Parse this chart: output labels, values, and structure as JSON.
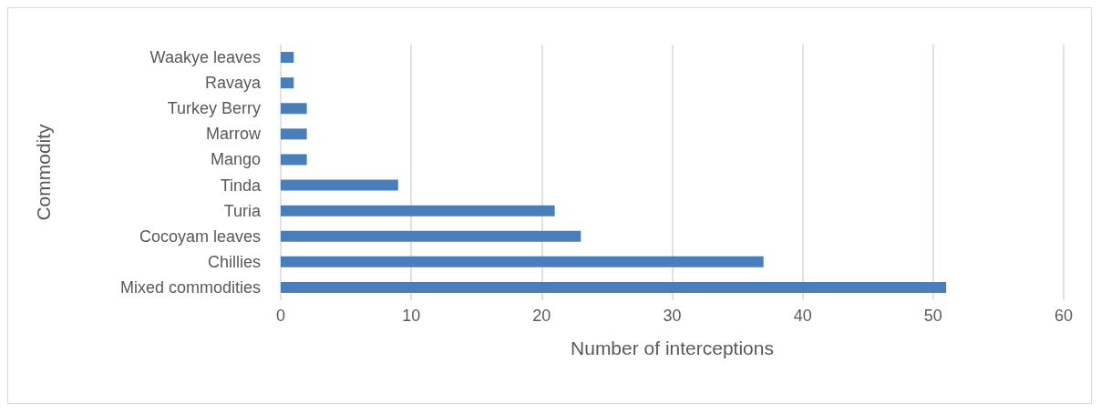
{
  "chart_data": {
    "type": "bar",
    "orientation": "horizontal",
    "xlabel": "Number of interceptions",
    "ylabel": "Commodity",
    "categories": [
      "Waakye leaves",
      "Ravaya",
      "Turkey Berry",
      "Marrow",
      "Mango",
      "Tinda",
      "Turia",
      "Cocoyam leaves",
      "Chillies",
      "Mixed commodities"
    ],
    "values": [
      1,
      1,
      2,
      2,
      2,
      9,
      21,
      23,
      37,
      51
    ],
    "color": "#4a7ebb",
    "xlim": [
      0,
      60
    ],
    "xticks": [
      0,
      10,
      20,
      30,
      40,
      50,
      60
    ],
    "grid": "x"
  }
}
